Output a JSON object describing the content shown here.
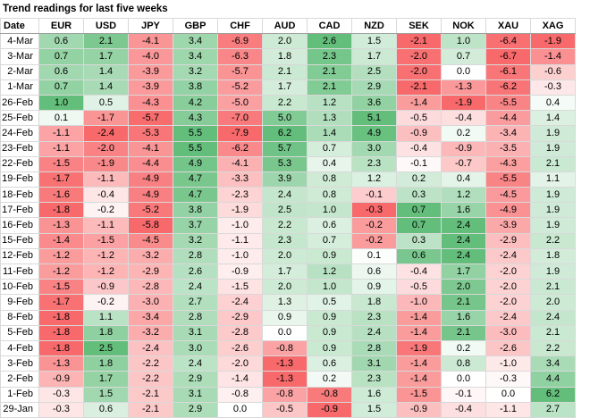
{
  "title": "Trend readings for last five weeks",
  "header": [
    "Date",
    "EUR",
    "USD",
    "JPY",
    "GBP",
    "CHF",
    "AUD",
    "CAD",
    "NZD",
    "SEK",
    "NOK",
    "XAU",
    "XAG"
  ],
  "colors": {
    "positive": "#63be7b",
    "negative": "#f8696b",
    "neutral": "#ffffff"
  },
  "rows": [
    {
      "date": "4-Mar",
      "values": [
        "0.6",
        "2.1",
        "-4.1",
        "3.4",
        "-6.9",
        "2.0",
        "2.6",
        "1.5",
        "-2.1",
        "1.0",
        "-6.4",
        "-1.9"
      ]
    },
    {
      "date": "3-Mar",
      "values": [
        "0.7",
        "1.7",
        "-4.0",
        "3.4",
        "-6.3",
        "1.8",
        "2.3",
        "1.7",
        "-2.0",
        "0.7",
        "-6.7",
        "-1.4"
      ]
    },
    {
      "date": "2-Mar",
      "values": [
        "0.6",
        "1.4",
        "-3.9",
        "3.2",
        "-5.7",
        "2.1",
        "2.1",
        "2.5",
        "-2.0",
        "0.0",
        "-6.1",
        "-0.6"
      ]
    },
    {
      "date": "1-Mar",
      "values": [
        "0.7",
        "1.4",
        "-3.9",
        "3.8",
        "-5.2",
        "1.7",
        "2.1",
        "2.9",
        "-2.1",
        "-1.3",
        "-6.2",
        "-0.3"
      ]
    },
    {
      "date": "26-Feb",
      "values": [
        "1.0",
        "0.5",
        "-4.3",
        "4.2",
        "-5.0",
        "2.2",
        "1.2",
        "3.6",
        "-1.4",
        "-1.9",
        "-5.5",
        "0.4"
      ]
    },
    {
      "date": "25-Feb",
      "values": [
        "0.1",
        "-1.7",
        "-5.7",
        "4.3",
        "-7.0",
        "5.0",
        "1.3",
        "5.1",
        "-0.5",
        "-0.4",
        "-4.4",
        "1.4"
      ]
    },
    {
      "date": "24-Feb",
      "values": [
        "-1.1",
        "-2.4",
        "-5.3",
        "5.5",
        "-7.9",
        "6.2",
        "1.4",
        "4.9",
        "-0.9",
        "0.2",
        "-3.4",
        "1.9"
      ]
    },
    {
      "date": "23-Feb",
      "values": [
        "-1.1",
        "-2.0",
        "-4.1",
        "5.5",
        "-6.2",
        "5.7",
        "0.7",
        "3.0",
        "-0.4",
        "-0.9",
        "-3.5",
        "1.9"
      ]
    },
    {
      "date": "22-Feb",
      "values": [
        "-1.5",
        "-1.9",
        "-4.4",
        "4.9",
        "-4.1",
        "5.3",
        "0.4",
        "2.3",
        "-0.1",
        "-0.7",
        "-4.3",
        "2.1"
      ]
    },
    {
      "date": "19-Feb",
      "values": [
        "-1.7",
        "-1.1",
        "-4.9",
        "4.7",
        "-3.3",
        "3.9",
        "0.8",
        "1.2",
        "0.2",
        "0.4",
        "-5.5",
        "1.1"
      ]
    },
    {
      "date": "18-Feb",
      "values": [
        "-1.6",
        "-0.4",
        "-4.9",
        "4.7",
        "-2.3",
        "2.4",
        "0.8",
        "-0.1",
        "0.3",
        "1.2",
        "-4.5",
        "1.9"
      ]
    },
    {
      "date": "17-Feb",
      "values": [
        "-1.8",
        "-0.2",
        "-5.2",
        "3.8",
        "-1.9",
        "2.5",
        "1.0",
        "-0.3",
        "0.7",
        "1.6",
        "-4.9",
        "1.9"
      ]
    },
    {
      "date": "16-Feb",
      "values": [
        "-1.3",
        "-1.1",
        "-5.8",
        "3.7",
        "-1.0",
        "2.2",
        "0.6",
        "-0.2",
        "0.7",
        "2.4",
        "-3.9",
        "1.9"
      ]
    },
    {
      "date": "15-Feb",
      "values": [
        "-1.4",
        "-1.5",
        "-4.5",
        "3.2",
        "-1.1",
        "2.3",
        "0.7",
        "-0.2",
        "0.3",
        "2.4",
        "-2.9",
        "2.2"
      ]
    },
    {
      "date": "12-Feb",
      "values": [
        "-1.2",
        "-1.2",
        "-3.2",
        "2.8",
        "-1.0",
        "2.0",
        "0.9",
        "0.1",
        "0.6",
        "2.4",
        "-2.4",
        "1.8"
      ]
    },
    {
      "date": "11-Feb",
      "values": [
        "-1.2",
        "-1.2",
        "-2.9",
        "2.6",
        "-0.9",
        "1.7",
        "1.2",
        "0.6",
        "-0.4",
        "1.7",
        "-2.0",
        "1.9"
      ]
    },
    {
      "date": "10-Feb",
      "values": [
        "-1.5",
        "-0.9",
        "-2.8",
        "2.4",
        "-1.5",
        "2.0",
        "1.0",
        "0.9",
        "-0.5",
        "2.0",
        "-2.0",
        "2.1"
      ]
    },
    {
      "date": "9-Feb",
      "values": [
        "-1.7",
        "-0.2",
        "-3.0",
        "2.7",
        "-2.4",
        "1.3",
        "0.5",
        "1.8",
        "-1.0",
        "2.1",
        "-2.0",
        "2.0"
      ]
    },
    {
      "date": "8-Feb",
      "values": [
        "-1.8",
        "1.1",
        "-3.4",
        "2.8",
        "-2.9",
        "0.9",
        "0.9",
        "2.3",
        "-1.4",
        "1.6",
        "-2.4",
        "2.4"
      ]
    },
    {
      "date": "5-Feb",
      "values": [
        "-1.8",
        "1.8",
        "-3.2",
        "3.1",
        "-2.8",
        "0.0",
        "0.9",
        "2.4",
        "-1.4",
        "2.1",
        "-3.0",
        "2.1"
      ]
    },
    {
      "date": "4-Feb",
      "values": [
        "-1.8",
        "2.5",
        "-2.4",
        "3.0",
        "-2.6",
        "-0.8",
        "0.9",
        "2.8",
        "-1.9",
        "0.2",
        "-2.6",
        "2.2"
      ]
    },
    {
      "date": "3-Feb",
      "values": [
        "-1.3",
        "1.8",
        "-2.2",
        "2.4",
        "-2.0",
        "-1.3",
        "0.6",
        "3.1",
        "-1.4",
        "0.8",
        "-1.0",
        "3.4"
      ]
    },
    {
      "date": "2-Feb",
      "values": [
        "-0.9",
        "1.7",
        "-2.2",
        "2.9",
        "-1.4",
        "-1.3",
        "0.2",
        "2.3",
        "-1.4",
        "0.0",
        "-0.3",
        "4.4"
      ]
    },
    {
      "date": "1-Feb",
      "values": [
        "-0.3",
        "1.5",
        "-2.1",
        "3.1",
        "-0.8",
        "-0.8",
        "-0.8",
        "1.6",
        "-1.5",
        "-0.1",
        "0.0",
        "6.2"
      ]
    },
    {
      "date": "29-Jan",
      "values": [
        "-0.3",
        "0.6",
        "-2.1",
        "2.9",
        "0.0",
        "-0.5",
        "-0.9",
        "1.5",
        "-0.9",
        "-0.4",
        "-1.1",
        "2.7"
      ]
    }
  ]
}
